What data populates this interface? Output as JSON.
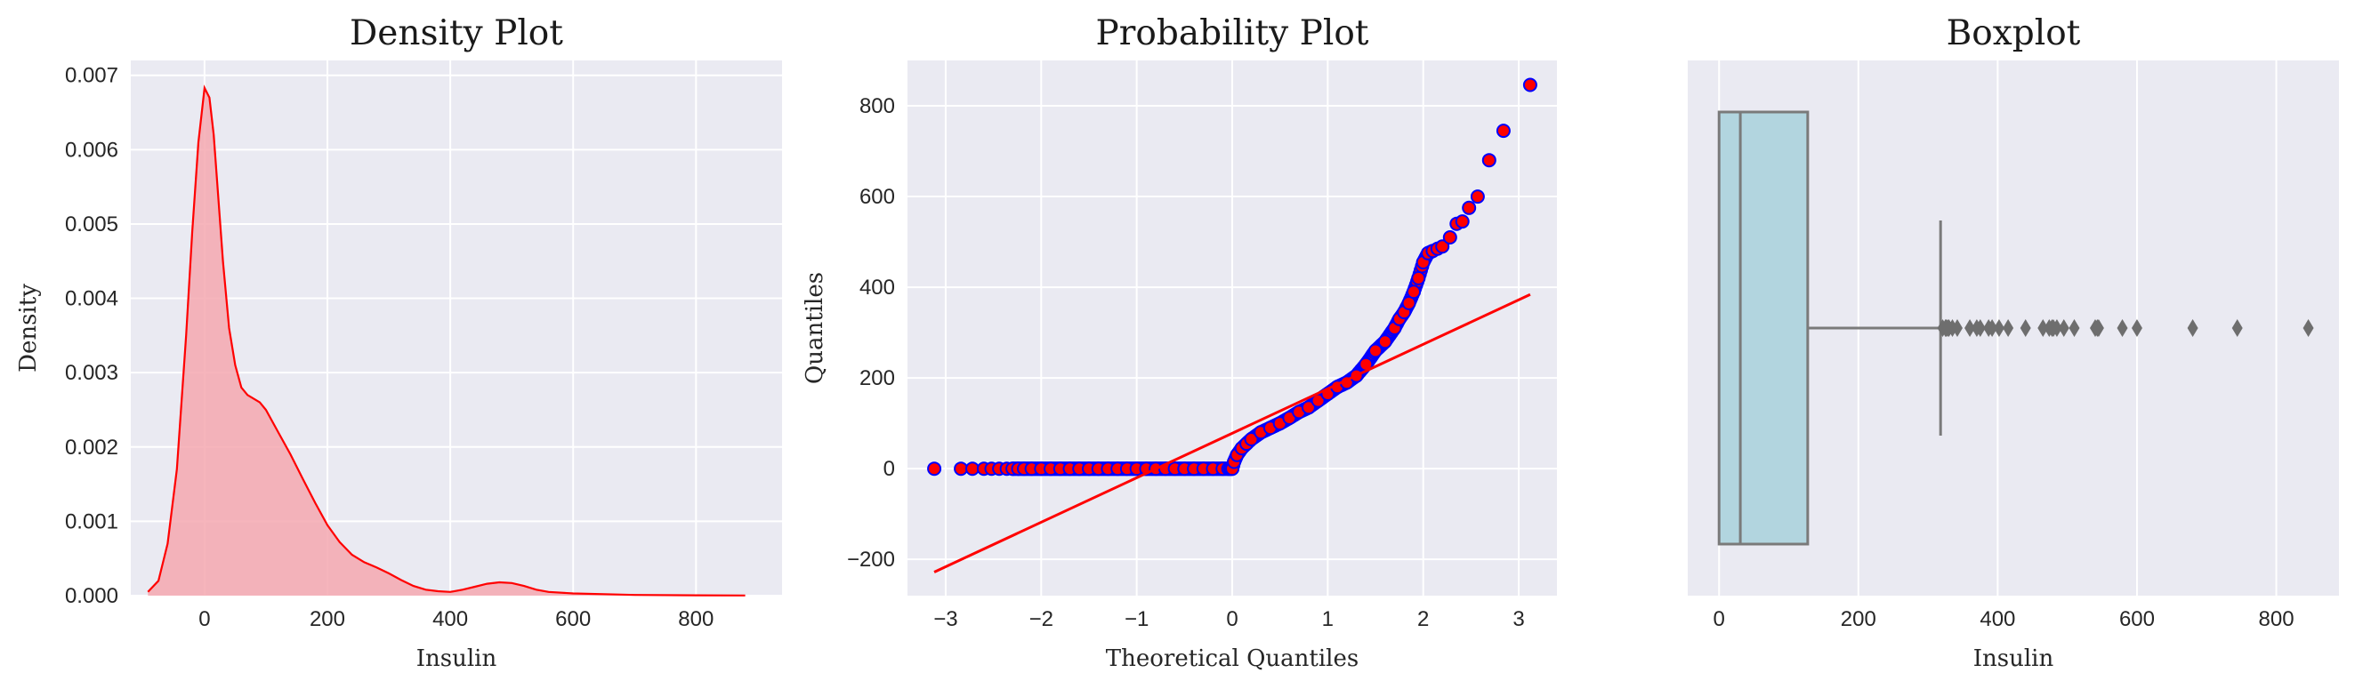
{
  "chart_data": [
    {
      "type": "area",
      "title": "Density Plot",
      "xlabel": "Insulin",
      "ylabel": "Density",
      "xlim": [
        -120,
        940
      ],
      "ylim": [
        0,
        0.0072
      ],
      "xticks": [
        0,
        200,
        400,
        600,
        800
      ],
      "yticks": [
        0.0,
        0.001,
        0.002,
        0.003,
        0.004,
        0.005,
        0.006,
        0.007
      ],
      "ytick_labels": [
        "0.000",
        "0.001",
        "0.002",
        "0.003",
        "0.004",
        "0.005",
        "0.006",
        "0.007"
      ],
      "grid": true,
      "colors": {
        "line": "#ff0000",
        "fill": "#f4a8b0"
      },
      "x": [
        -92,
        -75,
        -60,
        -45,
        -30,
        -20,
        -10,
        0,
        8,
        15,
        22,
        30,
        40,
        50,
        60,
        70,
        80,
        90,
        100,
        120,
        140,
        160,
        180,
        200,
        220,
        240,
        260,
        280,
        300,
        320,
        340,
        360,
        380,
        400,
        420,
        440,
        460,
        480,
        500,
        520,
        540,
        560,
        600,
        650,
        700,
        800,
        880
      ],
      "y": [
        5e-05,
        0.0002,
        0.0007,
        0.0017,
        0.0035,
        0.0049,
        0.0061,
        0.00683,
        0.0067,
        0.0062,
        0.0054,
        0.0045,
        0.0036,
        0.0031,
        0.0028,
        0.0027,
        0.00265,
        0.0026,
        0.0025,
        0.0022,
        0.0019,
        0.00157,
        0.00125,
        0.00095,
        0.00072,
        0.00055,
        0.00045,
        0.00038,
        0.0003,
        0.00021,
        0.00013,
        8e-05,
        6e-05,
        5e-05,
        8e-05,
        0.00012,
        0.00016,
        0.00018,
        0.00017,
        0.00013,
        8e-05,
        5e-05,
        3e-05,
        2e-05,
        1e-05,
        5e-06,
        2e-06
      ]
    },
    {
      "type": "scatter",
      "title": "Probability Plot",
      "xlabel": "Theoretical Quantiles",
      "ylabel": "Quantiles",
      "xlim": [
        -3.4,
        3.4
      ],
      "ylim": [
        -280,
        900
      ],
      "xticks": [
        -3,
        -2,
        -1,
        0,
        1,
        2,
        3
      ],
      "xtick_labels": [
        "−3",
        "−2",
        "−1",
        "0",
        "1",
        "2",
        "3"
      ],
      "yticks": [
        -200,
        0,
        200,
        400,
        600,
        800
      ],
      "ytick_labels": [
        "−200",
        "0",
        "200",
        "400",
        "600",
        "800"
      ],
      "grid": true,
      "colors": {
        "marker_face": "#ff0000",
        "marker_edge": "#0000ff",
        "line": "#ff0000"
      },
      "fit_line": {
        "x": [
          -3.12,
          3.12
        ],
        "y": [
          -228,
          384
        ]
      },
      "points": {
        "x": [
          -3.12,
          -2.84,
          -2.72,
          -2.6,
          -2.52,
          -2.44,
          -2.36,
          -2.3,
          -2.24,
          -2.18,
          -2.1,
          -2.0,
          -1.9,
          -1.8,
          -1.7,
          -1.6,
          -1.5,
          -1.4,
          -1.3,
          -1.2,
          -1.1,
          -1.0,
          -0.9,
          -0.8,
          -0.7,
          -0.6,
          -0.5,
          -0.4,
          -0.3,
          -0.2,
          -0.1,
          -0.04,
          -0.02,
          0.0,
          0.02,
          0.05,
          0.1,
          0.15,
          0.2,
          0.3,
          0.4,
          0.5,
          0.6,
          0.7,
          0.8,
          0.9,
          1.0,
          1.1,
          1.2,
          1.3,
          1.4,
          1.5,
          1.6,
          1.7,
          1.75,
          1.8,
          1.85,
          1.9,
          1.95,
          2.0,
          2.05,
          2.1,
          2.15,
          2.2,
          2.28,
          2.35,
          2.41,
          2.48,
          2.57,
          2.69,
          2.84,
          3.12
        ],
        "y": [
          0,
          0,
          0,
          0,
          0,
          0,
          0,
          0,
          0,
          0,
          0,
          0,
          0,
          0,
          0,
          0,
          0,
          0,
          0,
          0,
          0,
          0,
          0,
          0,
          0,
          0,
          0,
          0,
          0,
          0,
          0,
          0,
          0,
          0,
          15,
          30,
          45,
          55,
          65,
          80,
          90,
          100,
          112,
          125,
          135,
          150,
          165,
          180,
          190,
          205,
          230,
          260,
          280,
          310,
          330,
          345,
          365,
          390,
          420,
          455,
          475,
          480,
          485,
          490,
          510,
          540,
          545,
          575,
          600,
          680,
          745,
          846
        ]
      }
    },
    {
      "type": "box",
      "title": "Boxplot",
      "xlabel": "Insulin",
      "ylabel": "",
      "xlim": [
        -45,
        890
      ],
      "xticks": [
        0,
        200,
        400,
        600,
        800
      ],
      "grid": true,
      "colors": {
        "box_fill": "#b2d5df",
        "box_edge": "#7a7a7a",
        "whisker": "#7a7a7a",
        "flier": "#6e6e6e"
      },
      "stats": {
        "min": 0,
        "q1": 0,
        "median": 30.5,
        "q3": 127.25,
        "whisker_high": 318
      },
      "fliers": [
        321,
        325,
        326,
        328,
        330,
        335,
        342,
        360,
        370,
        375,
        387,
        392,
        402,
        415,
        440,
        465,
        474,
        478,
        480,
        485,
        495,
        510,
        540,
        543,
        545,
        579,
        600,
        680,
        744,
        846
      ]
    }
  ]
}
